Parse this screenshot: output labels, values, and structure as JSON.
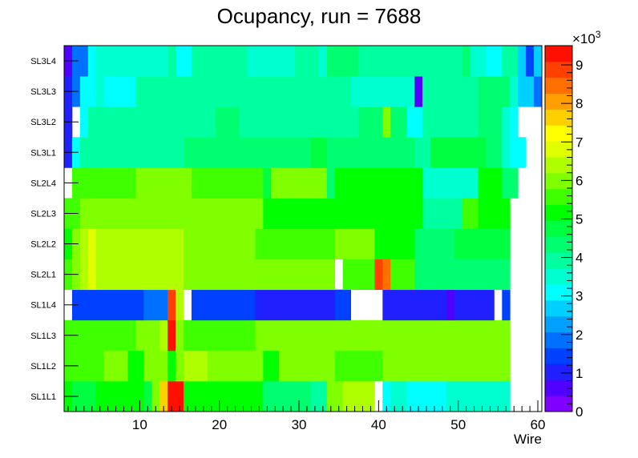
{
  "chart_data": {
    "type": "heatmap",
    "title": "Ocupancy, run = 7688",
    "xlabel": "Wire",
    "ylabel": "",
    "xlim": [
      0.5,
      60.5
    ],
    "x_ticks": [
      10,
      20,
      30,
      40,
      50,
      60
    ],
    "y_categories": [
      "SL1L1",
      "SL1L2",
      "SL1L3",
      "SL1L4",
      "SL2L1",
      "SL2L2",
      "SL2L3",
      "SL2L4",
      "SL3L1",
      "SL3L2",
      "SL3L3",
      "SL3L4"
    ],
    "z_range": [
      0,
      9500
    ],
    "z_multiplier_label": "×10",
    "z_multiplier_exponent": "3",
    "colorbar_ticks": [
      "0",
      "1",
      "2",
      "3",
      "4",
      "5",
      "6",
      "7",
      "8",
      "9"
    ],
    "colorbar_tick_values": [
      0,
      1000,
      2000,
      3000,
      4000,
      5000,
      6000,
      7000,
      8000,
      9000
    ],
    "palette": [
      "#8000ff",
      "#5000ff",
      "#2020ff",
      "#0040ff",
      "#0070ff",
      "#00a0ff",
      "#00d0ff",
      "#00ffff",
      "#00ffd0",
      "#00ffa0",
      "#00ff70",
      "#00ff40",
      "#00ff00",
      "#40ff00",
      "#80ff00",
      "#b0ff00",
      "#e0ff00",
      "#ffff00",
      "#ffd000",
      "#ffa000",
      "#ff7000",
      "#ff4000",
      "#ff1000"
    ],
    "rows": [
      {
        "layer": "SL1L1",
        "segments": [
          [
            1,
            1,
            5300
          ],
          [
            2,
            4,
            4900
          ],
          [
            5,
            10,
            5200
          ],
          [
            11,
            11,
            4900
          ],
          [
            12,
            12,
            6000
          ],
          [
            13,
            13,
            7800
          ],
          [
            14,
            15,
            9200
          ],
          [
            16,
            16,
            5300
          ],
          [
            17,
            21,
            5200
          ],
          [
            22,
            25,
            5000
          ],
          [
            26,
            31,
            4300
          ],
          [
            32,
            33,
            4000
          ],
          [
            34,
            35,
            6000
          ],
          [
            36,
            39,
            6200
          ],
          [
            40,
            40,
            0
          ],
          [
            41,
            41,
            3200
          ],
          [
            42,
            43,
            3600
          ],
          [
            44,
            46,
            3300
          ],
          [
            47,
            48,
            3000
          ],
          [
            49,
            56,
            3400
          ],
          [
            57,
            60,
            0
          ]
        ]
      },
      {
        "layer": "SL1L2",
        "segments": [
          [
            1,
            5,
            5500
          ],
          [
            6,
            8,
            5900
          ],
          [
            9,
            10,
            5300
          ],
          [
            11,
            13,
            5800
          ],
          [
            14,
            14,
            5300
          ],
          [
            15,
            15,
            6100
          ],
          [
            16,
            18,
            6200
          ],
          [
            19,
            25,
            6000
          ],
          [
            26,
            27,
            5300
          ],
          [
            28,
            34,
            6000
          ],
          [
            35,
            40,
            5700
          ],
          [
            41,
            56,
            5800
          ],
          [
            57,
            60,
            0
          ]
        ]
      },
      {
        "layer": "SL1L3",
        "segments": [
          [
            1,
            1,
            5600
          ],
          [
            2,
            9,
            5500
          ],
          [
            10,
            12,
            5900
          ],
          [
            13,
            13,
            6300
          ],
          [
            14,
            14,
            9300
          ],
          [
            15,
            15,
            5800
          ],
          [
            16,
            24,
            5500
          ],
          [
            25,
            30,
            5900
          ],
          [
            31,
            40,
            6000
          ],
          [
            41,
            56,
            5800
          ],
          [
            57,
            60,
            0
          ]
        ]
      },
      {
        "layer": "SL1L4",
        "segments": [
          [
            1,
            1,
            0
          ],
          [
            2,
            10,
            1500
          ],
          [
            11,
            13,
            2000
          ],
          [
            14,
            14,
            8700
          ],
          [
            15,
            15,
            6500
          ],
          [
            16,
            16,
            0
          ],
          [
            17,
            24,
            1400
          ],
          [
            25,
            34,
            1100
          ],
          [
            35,
            35,
            1300
          ],
          [
            36,
            36,
            1600
          ],
          [
            37,
            40,
            0
          ],
          [
            41,
            48,
            1200
          ],
          [
            49,
            49,
            700
          ],
          [
            50,
            54,
            1200
          ],
          [
            55,
            55,
            0
          ],
          [
            56,
            56,
            1300
          ],
          [
            57,
            60,
            0
          ]
        ]
      },
      {
        "layer": "SL2L1",
        "segments": [
          [
            1,
            1,
            5500
          ],
          [
            2,
            2,
            6100
          ],
          [
            3,
            3,
            6400
          ],
          [
            4,
            4,
            7000
          ],
          [
            5,
            10,
            6300
          ],
          [
            11,
            15,
            6500
          ],
          [
            16,
            34,
            5800
          ],
          [
            35,
            35,
            0
          ],
          [
            36,
            39,
            5500
          ],
          [
            40,
            40,
            9000
          ],
          [
            41,
            41,
            8500
          ],
          [
            42,
            44,
            5500
          ],
          [
            45,
            49,
            4400
          ],
          [
            50,
            56,
            4200
          ],
          [
            57,
            57,
            0
          ],
          [
            58,
            60,
            0
          ]
        ]
      },
      {
        "layer": "SL2L2",
        "segments": [
          [
            1,
            1,
            5300
          ],
          [
            2,
            2,
            6000
          ],
          [
            3,
            3,
            6500
          ],
          [
            4,
            4,
            7000
          ],
          [
            5,
            10,
            6200
          ],
          [
            11,
            15,
            6400
          ],
          [
            16,
            24,
            5900
          ],
          [
            25,
            34,
            5700
          ],
          [
            35,
            39,
            5800
          ],
          [
            40,
            44,
            5300
          ],
          [
            45,
            49,
            4300
          ],
          [
            50,
            56,
            4600
          ],
          [
            57,
            60,
            0
          ]
        ]
      },
      {
        "layer": "SL2L3",
        "segments": [
          [
            1,
            2,
            5600
          ],
          [
            3,
            4,
            6100
          ],
          [
            5,
            9,
            6000
          ],
          [
            10,
            16,
            6100
          ],
          [
            17,
            25,
            5800
          ],
          [
            26,
            30,
            5200
          ],
          [
            31,
            33,
            5000
          ],
          [
            34,
            38,
            5100
          ],
          [
            39,
            45,
            5000
          ],
          [
            46,
            50,
            3800
          ],
          [
            51,
            52,
            5500
          ],
          [
            53,
            56,
            5000
          ],
          [
            57,
            60,
            0
          ]
        ]
      },
      {
        "layer": "SL2L4",
        "segments": [
          [
            1,
            1,
            0
          ],
          [
            2,
            9,
            5700
          ],
          [
            10,
            16,
            6000
          ],
          [
            17,
            25,
            5700
          ],
          [
            26,
            26,
            4600
          ],
          [
            27,
            28,
            5800
          ],
          [
            29,
            33,
            5900
          ],
          [
            34,
            34,
            4200
          ],
          [
            35,
            40,
            5200
          ],
          [
            41,
            45,
            5000
          ],
          [
            46,
            52,
            3600
          ],
          [
            53,
            55,
            5200
          ],
          [
            56,
            57,
            4500
          ],
          [
            58,
            60,
            0
          ]
        ]
      },
      {
        "layer": "SL3L1",
        "segments": [
          [
            1,
            1,
            900
          ],
          [
            2,
            2,
            3200
          ],
          [
            3,
            15,
            4100
          ],
          [
            16,
            20,
            4500
          ],
          [
            21,
            27,
            4200
          ],
          [
            28,
            31,
            4400
          ],
          [
            32,
            33,
            4600
          ],
          [
            34,
            42,
            4500
          ],
          [
            43,
            44,
            4300
          ],
          [
            45,
            46,
            4100
          ],
          [
            47,
            53,
            4600
          ],
          [
            54,
            55,
            4300
          ],
          [
            56,
            56,
            3600
          ],
          [
            57,
            58,
            3300
          ],
          [
            59,
            60,
            0
          ]
        ]
      },
      {
        "layer": "SL3L2",
        "segments": [
          [
            1,
            1,
            900
          ],
          [
            2,
            2,
            0
          ],
          [
            3,
            3,
            3200
          ],
          [
            4,
            4,
            3800
          ],
          [
            5,
            15,
            4100
          ],
          [
            16,
            19,
            4000
          ],
          [
            20,
            22,
            4300
          ],
          [
            23,
            30,
            4100
          ],
          [
            31,
            37,
            4000
          ],
          [
            38,
            40,
            4500
          ],
          [
            41,
            41,
            6000
          ],
          [
            42,
            43,
            4200
          ],
          [
            44,
            45,
            3300
          ],
          [
            46,
            52,
            4000
          ],
          [
            53,
            55,
            4200
          ],
          [
            56,
            56,
            3700
          ],
          [
            57,
            57,
            3300
          ],
          [
            58,
            60,
            0
          ]
        ]
      },
      {
        "layer": "SL3L3",
        "segments": [
          [
            1,
            1,
            1000
          ],
          [
            2,
            2,
            1800
          ],
          [
            3,
            4,
            3000
          ],
          [
            5,
            5,
            3600
          ],
          [
            6,
            7,
            3000
          ],
          [
            8,
            9,
            3300
          ],
          [
            10,
            36,
            4000
          ],
          [
            37,
            44,
            3700
          ],
          [
            45,
            45,
            700
          ],
          [
            46,
            52,
            4000
          ],
          [
            53,
            56,
            4200
          ],
          [
            57,
            57,
            3500
          ],
          [
            58,
            58,
            2800
          ],
          [
            59,
            59,
            2700
          ],
          [
            60,
            60,
            2000
          ]
        ]
      },
      {
        "layer": "SL3L4",
        "segments": [
          [
            1,
            1,
            700
          ],
          [
            2,
            3,
            1800
          ],
          [
            4,
            4,
            3200
          ],
          [
            5,
            13,
            3400
          ],
          [
            14,
            14,
            4100
          ],
          [
            15,
            16,
            3300
          ],
          [
            17,
            23,
            4000
          ],
          [
            24,
            29,
            3400
          ],
          [
            30,
            32,
            4000
          ],
          [
            33,
            33,
            3500
          ],
          [
            34,
            37,
            4200
          ],
          [
            38,
            44,
            4000
          ],
          [
            45,
            50,
            3800
          ],
          [
            51,
            51,
            4300
          ],
          [
            52,
            53,
            3600
          ],
          [
            54,
            55,
            3200
          ],
          [
            56,
            57,
            3900
          ],
          [
            58,
            58,
            2800
          ],
          [
            59,
            59,
            1500
          ],
          [
            60,
            60,
            2800
          ]
        ]
      }
    ]
  }
}
